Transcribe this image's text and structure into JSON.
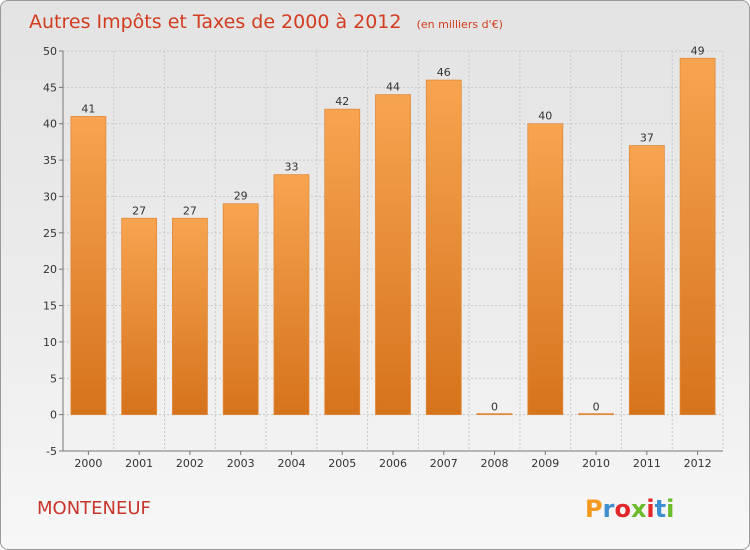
{
  "chart_data": {
    "type": "bar",
    "title": "Autres Impôts et Taxes de 2000 à 2012",
    "unit_note": "(en milliers d'€)",
    "categories": [
      "2000",
      "2001",
      "2002",
      "2003",
      "2004",
      "2005",
      "2006",
      "2007",
      "2008",
      "2009",
      "2010",
      "2011",
      "2012"
    ],
    "values": [
      41,
      27,
      27,
      29,
      33,
      42,
      44,
      46,
      0,
      40,
      0,
      37,
      49
    ],
    "ylim": [
      -5,
      50
    ],
    "yticks": [
      -5,
      0,
      5,
      10,
      15,
      20,
      25,
      30,
      35,
      40,
      45,
      50
    ],
    "grid": true,
    "bar_color": "#f0932f",
    "xlabel": "",
    "ylabel": ""
  },
  "commune": "MONTENEUF",
  "logo": {
    "text": "Proxiti",
    "letter_colors": [
      "#f39a1e",
      "#3d8fd1",
      "#e2262a",
      "#6cbb2b",
      "#e2262a",
      "#3d8fd1",
      "#6cbb2b"
    ]
  }
}
